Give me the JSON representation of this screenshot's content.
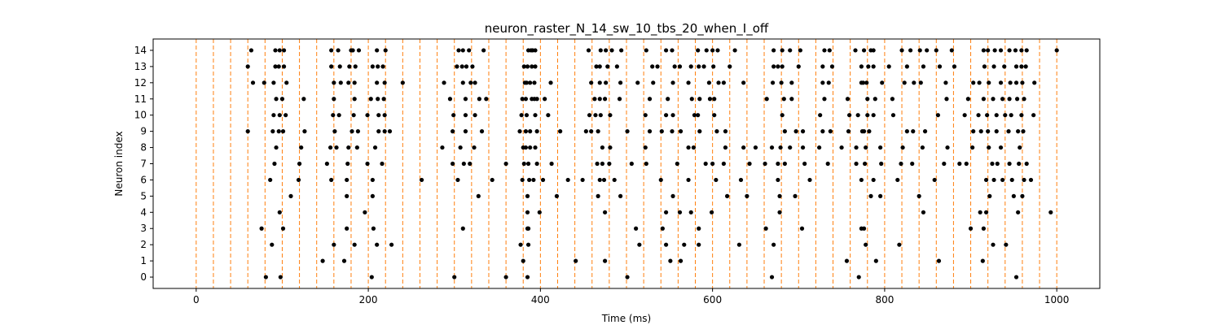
{
  "chart_data": {
    "type": "scatter",
    "title": "neuron_raster_N_14_sw_10_tbs_20_when_I_off",
    "xlabel": "Time (ms)",
    "ylabel": "Neuron index",
    "xlim": [
      -50,
      1050
    ],
    "ylim": [
      -0.7,
      14.7
    ],
    "x_ticks": [
      0,
      200,
      400,
      600,
      800,
      1000
    ],
    "y_ticks": [
      0,
      1,
      2,
      3,
      4,
      5,
      6,
      7,
      8,
      9,
      10,
      11,
      12,
      13,
      14
    ],
    "grid": false,
    "marker_color": "#000000",
    "boundary_color": "#ff7f0e",
    "boundary_interval_ms": 20,
    "boundaries_ms": [
      0,
      20,
      40,
      60,
      80,
      100,
      120,
      140,
      160,
      180,
      200,
      220,
      240,
      260,
      280,
      300,
      320,
      340,
      360,
      380,
      400,
      420,
      440,
      460,
      480,
      500,
      520,
      540,
      560,
      580,
      600,
      620,
      640,
      660,
      680,
      700,
      720,
      740,
      760,
      780,
      800,
      820,
      840,
      860,
      880,
      900,
      920,
      940,
      960,
      980,
      1000
    ],
    "spikes": [
      {
        "neuron": 14,
        "times": [
          64,
          92,
          97,
          102,
          157,
          165,
          180,
          182,
          189,
          210,
          220,
          305,
          310,
          317,
          334,
          386,
          389,
          391,
          394,
          456,
          470,
          476,
          483,
          494,
          523,
          546,
          553,
          583,
          593,
          600,
          606,
          626,
          671,
          681,
          690,
          702,
          730,
          736,
          766,
          776,
          784,
          787,
          820,
          830,
          841,
          849,
          860,
          878,
          915,
          920,
          928,
          935,
          945,
          952,
          959,
          965,
          1000
        ]
      },
      {
        "neuron": 13,
        "times": [
          60,
          92,
          96,
          102,
          157,
          167,
          178,
          185,
          205,
          211,
          217,
          303,
          309,
          314,
          321,
          381,
          385,
          390,
          394,
          465,
          469,
          478,
          489,
          530,
          536,
          556,
          562,
          575,
          584,
          590,
          601,
          620,
          671,
          676,
          681,
          700,
          728,
          739,
          773,
          781,
          787,
          805,
          826,
          845,
          864,
          881,
          916,
          927,
          939,
          953,
          959,
          964
        ]
      },
      {
        "neuron": 12,
        "times": [
          66,
          79,
          90,
          105,
          160,
          168,
          177,
          184,
          210,
          219,
          240,
          288,
          310,
          319,
          324,
          382,
          384,
          388,
          393,
          412,
          459,
          469,
          476,
          493,
          513,
          531,
          554,
          572,
          596,
          607,
          613,
          636,
          670,
          680,
          692,
          728,
          735,
          773,
          775,
          779,
          797,
          823,
          834,
          842,
          871,
          903,
          910,
          921,
          935,
          946,
          953,
          960,
          974
        ]
      },
      {
        "neuron": 11,
        "times": [
          93,
          100,
          125,
          160,
          184,
          203,
          211,
          218,
          295,
          313,
          329,
          337,
          379,
          383,
          390,
          393,
          396,
          405,
          463,
          469,
          475,
          492,
          527,
          548,
          576,
          585,
          597,
          602,
          663,
          683,
          692,
          730,
          757,
          780,
          789,
          809,
          872,
          897,
          915,
          926,
          937,
          945,
          954,
          962
        ]
      },
      {
        "neuron": 10,
        "times": [
          90,
          97,
          104,
          159,
          166,
          183,
          199,
          212,
          219,
          299,
          313,
          324,
          378,
          384,
          394,
          409,
          457,
          464,
          470,
          481,
          522,
          546,
          554,
          579,
          583,
          602,
          681,
          725,
          759,
          769,
          780,
          787,
          810,
          862,
          893,
          909,
          919,
          930,
          940,
          947,
          959,
          973
        ]
      },
      {
        "neuron": 9,
        "times": [
          60,
          89,
          96,
          101,
          126,
          161,
          181,
          188,
          212,
          219,
          225,
          298,
          313,
          332,
          376,
          383,
          388,
          396,
          423,
          453,
          459,
          467,
          501,
          527,
          541,
          553,
          563,
          585,
          605,
          615,
          684,
          697,
          705,
          728,
          737,
          758,
          774,
          776,
          782,
          826,
          833,
          847,
          903,
          912,
          920,
          930,
          944,
          955,
          961
        ]
      },
      {
        "neuron": 8,
        "times": [
          93,
          122,
          156,
          163,
          177,
          187,
          208,
          286,
          307,
          323,
          380,
          383,
          388,
          394,
          472,
          481,
          522,
          572,
          578,
          615,
          636,
          650,
          669,
          679,
          690,
          705,
          724,
          750,
          767,
          778,
          795,
          821,
          844,
          873,
          902,
          921,
          935,
          957
        ]
      },
      {
        "neuron": 7,
        "times": [
          91,
          120,
          152,
          176,
          199,
          216,
          298,
          311,
          318,
          360,
          381,
          386,
          396,
          413,
          466,
          472,
          480,
          506,
          523,
          559,
          592,
          600,
          613,
          643,
          661,
          676,
          684,
          707,
          734,
          767,
          777,
          796,
          819,
          832,
          869,
          887,
          895,
          925,
          931,
          945,
          956,
          965
        ]
      },
      {
        "neuron": 6,
        "times": [
          86,
          119,
          157,
          175,
          205,
          262,
          304,
          344,
          379,
          387,
          392,
          403,
          432,
          449,
          469,
          474,
          486,
          540,
          572,
          604,
          633,
          676,
          713,
          773,
          787,
          815,
          858,
          918,
          927,
          937,
          948,
          962,
          970
        ]
      },
      {
        "neuron": 5,
        "times": [
          110,
          175,
          205,
          328,
          385,
          419,
          467,
          493,
          554,
          617,
          640,
          678,
          696,
          784,
          795,
          840,
          922,
          950,
          960
        ]
      },
      {
        "neuron": 4,
        "times": [
          97,
          196,
          385,
          399,
          475,
          546,
          562,
          575,
          599,
          678,
          845,
          911,
          918,
          955,
          993
        ]
      },
      {
        "neuron": 3,
        "times": [
          76,
          101,
          175,
          206,
          310,
          385,
          386,
          511,
          542,
          584,
          662,
          704,
          773,
          776,
          900,
          915
        ]
      },
      {
        "neuron": 2,
        "times": [
          88,
          160,
          184,
          210,
          227,
          377,
          386,
          515,
          546,
          567,
          584,
          631,
          671,
          778,
          817,
          926,
          941
        ]
      },
      {
        "neuron": 1,
        "times": [
          147,
          172,
          380,
          441,
          475,
          551,
          563,
          756,
          790,
          863,
          914
        ]
      },
      {
        "neuron": 0,
        "times": [
          81,
          98,
          204,
          300,
          360,
          385,
          501,
          669,
          770,
          953
        ]
      }
    ]
  }
}
